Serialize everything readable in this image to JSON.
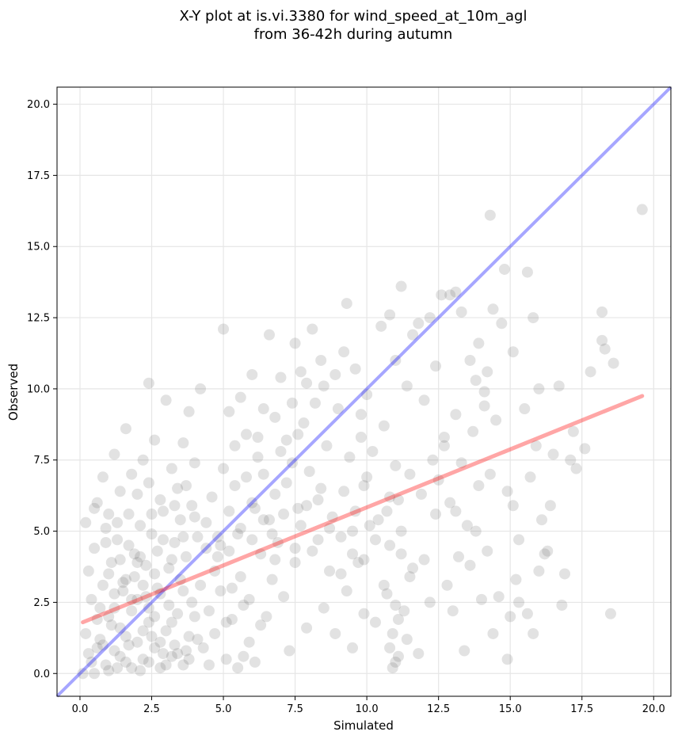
{
  "chart_data": {
    "type": "scatter",
    "title_line1": "X-Y plot at is.vi.3380 for wind_speed_at_10m_agl",
    "title_line2": "from 36-42h during autumn",
    "xlabel": "Simulated",
    "ylabel": "Observed",
    "xlim": [
      -0.8,
      20.6
    ],
    "ylim": [
      -0.8,
      20.6
    ],
    "xticks": [
      0.0,
      2.5,
      5.0,
      7.5,
      10.0,
      12.5,
      15.0,
      17.5,
      20.0
    ],
    "xtick_labels": [
      "0.0",
      "2.5",
      "5.0",
      "7.5",
      "10.0",
      "12.5",
      "15.0",
      "17.5",
      "20.0"
    ],
    "yticks": [
      0.0,
      2.5,
      5.0,
      7.5,
      10.0,
      12.5,
      15.0,
      17.5,
      20.0
    ],
    "ytick_labels": [
      "0.0",
      "2.5",
      "5.0",
      "7.5",
      "10.0",
      "12.5",
      "15.0",
      "17.5",
      "20.0"
    ],
    "grid": true,
    "point_color": "#555555",
    "identity_line": {
      "x": [
        -0.8,
        20.6
      ],
      "y": [
        -0.8,
        20.6
      ],
      "color": "#0000ff"
    },
    "regression_line": {
      "x": [
        0.1,
        19.6
      ],
      "y": [
        1.8,
        9.75
      ],
      "color": "#ff0000"
    },
    "points": [
      [
        0.1,
        0.0
      ],
      [
        0.3,
        0.7
      ],
      [
        0.5,
        0.0
      ],
      [
        0.7,
        1.2
      ],
      [
        0.9,
        0.3
      ],
      [
        1.0,
        2.0
      ],
      [
        1.2,
        0.8
      ],
      [
        1.4,
        1.6
      ],
      [
        1.6,
        0.4
      ],
      [
        1.8,
        2.2
      ],
      [
        2.0,
        1.1
      ],
      [
        2.2,
        0.5
      ],
      [
        2.4,
        1.8
      ],
      [
        2.6,
        0.9
      ],
      [
        2.8,
        0.2
      ],
      [
        3.0,
        1.5
      ],
      [
        3.2,
        0.6
      ],
      [
        3.4,
        2.1
      ],
      [
        3.6,
        0.3
      ],
      [
        3.8,
        1.3
      ],
      [
        0.2,
        1.4
      ],
      [
        0.4,
        2.6
      ],
      [
        0.6,
        0.9
      ],
      [
        0.8,
        3.1
      ],
      [
        1.1,
        1.7
      ],
      [
        1.3,
        0.2
      ],
      [
        1.5,
        2.9
      ],
      [
        1.7,
        1.0
      ],
      [
        1.9,
        3.4
      ],
      [
        2.1,
        0.1
      ],
      [
        2.3,
        2.7
      ],
      [
        2.5,
        1.3
      ],
      [
        2.7,
        3.0
      ],
      [
        2.9,
        0.7
      ],
      [
        3.1,
        2.4
      ],
      [
        3.3,
        1.0
      ],
      [
        3.5,
        3.3
      ],
      [
        3.7,
        0.8
      ],
      [
        3.9,
        2.5
      ],
      [
        4.1,
        1.2
      ],
      [
        0.3,
        3.6
      ],
      [
        0.5,
        4.4
      ],
      [
        0.7,
        2.3
      ],
      [
        0.9,
        5.1
      ],
      [
        1.1,
        3.9
      ],
      [
        1.3,
        4.7
      ],
      [
        1.5,
        3.2
      ],
      [
        1.7,
        5.6
      ],
      [
        1.9,
        4.2
      ],
      [
        2.1,
        5.2
      ],
      [
        2.3,
        3.8
      ],
      [
        2.5,
        4.9
      ],
      [
        2.7,
        4.3
      ],
      [
        2.9,
        5.7
      ],
      [
        3.1,
        3.7
      ],
      [
        3.3,
        4.6
      ],
      [
        3.5,
        5.4
      ],
      [
        3.7,
        4.1
      ],
      [
        3.9,
        5.9
      ],
      [
        4.1,
        4.8
      ],
      [
        0.6,
        6.0
      ],
      [
        0.8,
        6.9
      ],
      [
        1.0,
        5.6
      ],
      [
        1.2,
        7.7
      ],
      [
        1.4,
        6.4
      ],
      [
        1.6,
        8.6
      ],
      [
        1.8,
        7.0
      ],
      [
        2.0,
        6.3
      ],
      [
        2.2,
        7.5
      ],
      [
        2.4,
        6.7
      ],
      [
        2.6,
        8.2
      ],
      [
        2.8,
        6.1
      ],
      [
        3.0,
        9.6
      ],
      [
        3.2,
        7.2
      ],
      [
        3.4,
        6.5
      ],
      [
        3.6,
        8.1
      ],
      [
        3.8,
        9.2
      ],
      [
        4.0,
        7.4
      ],
      [
        4.2,
        10.0
      ],
      [
        2.4,
        10.2
      ],
      [
        4.3,
        0.9
      ],
      [
        4.5,
        2.2
      ],
      [
        4.7,
        3.6
      ],
      [
        4.9,
        4.5
      ],
      [
        5.1,
        1.8
      ],
      [
        5.3,
        3.0
      ],
      [
        5.5,
        4.9
      ],
      [
        5.7,
        0.6
      ],
      [
        5.9,
        2.6
      ],
      [
        6.1,
        5.8
      ],
      [
        4.4,
        5.3
      ],
      [
        4.6,
        6.2
      ],
      [
        4.8,
        4.1
      ],
      [
        5.0,
        7.2
      ],
      [
        5.2,
        5.7
      ],
      [
        5.4,
        6.6
      ],
      [
        5.6,
        3.4
      ],
      [
        5.8,
        8.4
      ],
      [
        6.0,
        6.0
      ],
      [
        6.2,
        7.6
      ],
      [
        4.5,
        0.3
      ],
      [
        4.7,
        1.4
      ],
      [
        4.9,
        2.9
      ],
      [
        5.1,
        0.5
      ],
      [
        5.3,
        1.9
      ],
      [
        5.5,
        0.2
      ],
      [
        5.7,
        2.4
      ],
      [
        5.9,
        1.1
      ],
      [
        6.1,
        0.4
      ],
      [
        6.3,
        1.7
      ],
      [
        5.0,
        12.1
      ],
      [
        5.6,
        9.7
      ],
      [
        6.0,
        10.5
      ],
      [
        6.6,
        11.9
      ],
      [
        6.8,
        9.0
      ],
      [
        7.0,
        10.4
      ],
      [
        7.2,
        8.2
      ],
      [
        6.4,
        7.0
      ],
      [
        6.6,
        5.4
      ],
      [
        6.8,
        6.3
      ],
      [
        6.5,
        2.0
      ],
      [
        6.7,
        3.3
      ],
      [
        6.9,
        4.6
      ],
      [
        7.1,
        2.7
      ],
      [
        7.3,
        0.8
      ],
      [
        7.5,
        3.9
      ],
      [
        7.7,
        5.2
      ],
      [
        7.9,
        1.6
      ],
      [
        8.1,
        4.3
      ],
      [
        8.3,
        6.1
      ],
      [
        7.2,
        6.7
      ],
      [
        7.4,
        7.4
      ],
      [
        7.6,
        5.8
      ],
      [
        7.8,
        8.8
      ],
      [
        8.0,
        7.1
      ],
      [
        8.2,
        9.5
      ],
      [
        8.4,
        6.5
      ],
      [
        8.6,
        8.0
      ],
      [
        8.8,
        5.5
      ],
      [
        9.0,
        9.3
      ],
      [
        7.5,
        11.6
      ],
      [
        7.7,
        10.6
      ],
      [
        8.1,
        12.1
      ],
      [
        8.5,
        10.1
      ],
      [
        8.9,
        10.5
      ],
      [
        9.2,
        11.3
      ],
      [
        9.3,
        13.0
      ],
      [
        9.6,
        10.7
      ],
      [
        9.8,
        9.1
      ],
      [
        10.0,
        9.8
      ],
      [
        8.5,
        2.3
      ],
      [
        8.7,
        3.6
      ],
      [
        8.9,
        1.4
      ],
      [
        9.1,
        4.8
      ],
      [
        9.3,
        2.9
      ],
      [
        9.5,
        0.9
      ],
      [
        9.7,
        3.9
      ],
      [
        9.9,
        2.1
      ],
      [
        10.1,
        5.2
      ],
      [
        10.3,
        1.8
      ],
      [
        9.2,
        6.4
      ],
      [
        9.4,
        7.6
      ],
      [
        9.6,
        5.7
      ],
      [
        9.8,
        8.3
      ],
      [
        10.0,
        6.9
      ],
      [
        10.2,
        7.8
      ],
      [
        10.4,
        5.4
      ],
      [
        10.6,
        8.7
      ],
      [
        10.8,
        6.2
      ],
      [
        11.0,
        7.3
      ],
      [
        10.5,
        12.2
      ],
      [
        10.8,
        12.6
      ],
      [
        11.0,
        11.0
      ],
      [
        11.2,
        13.6
      ],
      [
        11.4,
        10.1
      ],
      [
        11.6,
        11.9
      ],
      [
        11.8,
        12.3
      ],
      [
        12.0,
        9.6
      ],
      [
        12.2,
        12.5
      ],
      [
        12.4,
        10.8
      ],
      [
        10.6,
        3.1
      ],
      [
        10.8,
        4.5
      ],
      [
        11.0,
        2.4
      ],
      [
        11.2,
        5.0
      ],
      [
        11.4,
        1.2
      ],
      [
        11.6,
        3.7
      ],
      [
        11.8,
        0.7
      ],
      [
        12.0,
        4.0
      ],
      [
        12.2,
        2.5
      ],
      [
        12.4,
        5.6
      ],
      [
        11.0,
        0.4
      ],
      [
        10.9,
        0.2
      ],
      [
        11.1,
        1.9
      ],
      [
        10.8,
        0.9
      ],
      [
        11.3,
        2.2
      ],
      [
        10.7,
        2.8
      ],
      [
        11.5,
        3.4
      ],
      [
        11.1,
        0.6
      ],
      [
        10.9,
        1.4
      ],
      [
        11.2,
        4.2
      ],
      [
        12.5,
        6.8
      ],
      [
        12.7,
        8.3
      ],
      [
        12.9,
        6.0
      ],
      [
        13.1,
        9.1
      ],
      [
        13.3,
        7.4
      ],
      [
        13.5,
        5.2
      ],
      [
        13.7,
        8.5
      ],
      [
        13.9,
        6.6
      ],
      [
        14.1,
        9.4
      ],
      [
        14.3,
        7.0
      ],
      [
        12.6,
        13.3
      ],
      [
        12.9,
        13.3
      ],
      [
        13.1,
        13.4
      ],
      [
        13.3,
        12.7
      ],
      [
        13.6,
        11.0
      ],
      [
        13.9,
        11.6
      ],
      [
        14.2,
        10.6
      ],
      [
        14.4,
        12.8
      ],
      [
        14.7,
        12.3
      ],
      [
        14.8,
        14.2
      ],
      [
        12.8,
        3.1
      ],
      [
        13.0,
        2.2
      ],
      [
        13.2,
        4.1
      ],
      [
        13.4,
        0.8
      ],
      [
        13.6,
        3.8
      ],
      [
        13.8,
        5.0
      ],
      [
        14.0,
        2.6
      ],
      [
        14.2,
        4.3
      ],
      [
        14.4,
        1.4
      ],
      [
        14.6,
        2.7
      ],
      [
        14.9,
        6.4
      ],
      [
        15.1,
        5.9
      ],
      [
        15.3,
        4.7
      ],
      [
        15.5,
        9.3
      ],
      [
        15.7,
        6.9
      ],
      [
        15.9,
        8.0
      ],
      [
        16.1,
        5.4
      ],
      [
        16.3,
        4.3
      ],
      [
        16.5,
        7.7
      ],
      [
        16.7,
        10.1
      ],
      [
        14.3,
        16.1
      ],
      [
        15.1,
        11.3
      ],
      [
        15.6,
        14.1
      ],
      [
        15.8,
        12.5
      ],
      [
        16.0,
        10.0
      ],
      [
        16.4,
        5.9
      ],
      [
        16.9,
        3.5
      ],
      [
        17.1,
        7.5
      ],
      [
        17.3,
        7.2
      ],
      [
        17.8,
        10.6
      ],
      [
        14.9,
        0.5
      ],
      [
        15.0,
        2.0
      ],
      [
        15.3,
        2.5
      ],
      [
        15.6,
        2.1
      ],
      [
        15.8,
        1.4
      ],
      [
        16.0,
        3.6
      ],
      [
        16.8,
        2.4
      ],
      [
        17.6,
        7.9
      ],
      [
        18.2,
        11.7
      ],
      [
        18.3,
        11.4
      ],
      [
        18.2,
        12.7
      ],
      [
        18.6,
        10.9
      ],
      [
        18.5,
        2.1
      ],
      [
        19.6,
        16.3
      ],
      [
        16.2,
        4.2
      ],
      [
        15.2,
        3.3
      ],
      [
        17.2,
        8.5
      ],
      [
        14.5,
        8.9
      ],
      [
        14.1,
        9.9
      ],
      [
        13.8,
        10.3
      ],
      [
        1.0,
        3.5
      ],
      [
        1.2,
        2.8
      ],
      [
        1.4,
        4.0
      ],
      [
        1.6,
        3.3
      ],
      [
        1.8,
        2.6
      ],
      [
        2.0,
        3.9
      ],
      [
        2.2,
        3.1
      ],
      [
        2.4,
        2.3
      ],
      [
        2.6,
        3.5
      ],
      [
        2.8,
        2.8
      ],
      [
        0.4,
        0.4
      ],
      [
        0.6,
        1.9
      ],
      [
        0.8,
        1.0
      ],
      [
        1.0,
        0.1
      ],
      [
        1.2,
        2.3
      ],
      [
        1.4,
        0.6
      ],
      [
        1.6,
        1.3
      ],
      [
        1.8,
        0.2
      ],
      [
        2.0,
        2.6
      ],
      [
        2.2,
        1.5
      ],
      [
        2.4,
        0.4
      ],
      [
        2.6,
        2.0
      ],
      [
        2.8,
        1.1
      ],
      [
        3.0,
        0.3
      ],
      [
        3.2,
        1.8
      ],
      [
        3.4,
        0.7
      ],
      [
        3.6,
        2.9
      ],
      [
        3.8,
        0.5
      ],
      [
        4.0,
        2.0
      ],
      [
        4.2,
        3.1
      ],
      [
        0.2,
        5.3
      ],
      [
        0.5,
        5.8
      ],
      [
        0.9,
        4.6
      ],
      [
        1.3,
        5.3
      ],
      [
        1.7,
        4.5
      ],
      [
        2.1,
        4.1
      ],
      [
        2.5,
        5.6
      ],
      [
        2.9,
        4.7
      ],
      [
        3.3,
        5.9
      ],
      [
        3.7,
        6.6
      ],
      [
        5.2,
        9.2
      ],
      [
        5.4,
        8.0
      ],
      [
        5.8,
        6.9
      ],
      [
        6.2,
        8.3
      ],
      [
        6.4,
        9.3
      ],
      [
        7.0,
        7.8
      ],
      [
        7.4,
        9.5
      ],
      [
        7.6,
        8.4
      ],
      [
        7.9,
        10.2
      ],
      [
        8.4,
        11.0
      ],
      [
        9.5,
        5.0
      ],
      [
        9.9,
        4.0
      ],
      [
        10.3,
        4.7
      ],
      [
        10.7,
        5.7
      ],
      [
        11.1,
        6.1
      ],
      [
        11.5,
        7.0
      ],
      [
        11.9,
        6.3
      ],
      [
        12.3,
        7.5
      ],
      [
        12.7,
        8.0
      ],
      [
        13.1,
        5.7
      ],
      [
        6.3,
        4.2
      ],
      [
        6.7,
        4.9
      ],
      [
        7.1,
        5.6
      ],
      [
        7.5,
        4.4
      ],
      [
        7.9,
        5.9
      ],
      [
        8.3,
        4.7
      ],
      [
        8.7,
        5.1
      ],
      [
        9.1,
        3.5
      ],
      [
        9.5,
        4.2
      ],
      [
        9.9,
        6.6
      ],
      [
        3.2,
        4.0
      ],
      [
        3.6,
        4.8
      ],
      [
        4.0,
        5.5
      ],
      [
        4.4,
        4.4
      ],
      [
        4.8,
        4.8
      ],
      [
        5.2,
        4.3
      ],
      [
        5.6,
        5.1
      ],
      [
        6.0,
        4.7
      ],
      [
        6.4,
        5.4
      ],
      [
        6.8,
        4.0
      ]
    ]
  }
}
